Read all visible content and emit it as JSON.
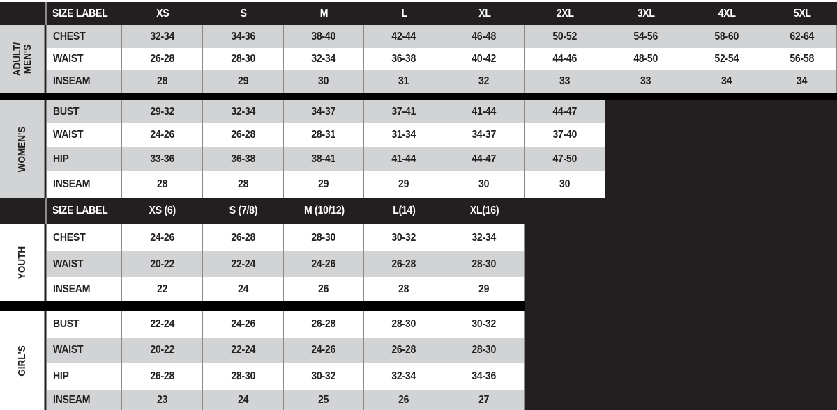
{
  "colors": {
    "dark": "#231f20",
    "bar": "#000000",
    "gray_row": "#d1d3d4",
    "white_row": "#ffffff"
  },
  "adult_header": {
    "label": "SIZE LABEL",
    "sizes": [
      "XS",
      "S",
      "M",
      "L",
      "XL",
      "2XL",
      "3XL",
      "4XL",
      "5XL"
    ]
  },
  "sections": [
    {
      "group": [
        "ADULT/",
        "MEN'S"
      ],
      "rows": [
        {
          "label": "CHEST",
          "values": [
            "32-34",
            "34-36",
            "38-40",
            "42-44",
            "46-48",
            "50-52",
            "54-56",
            "58-60",
            "62-64"
          ]
        },
        {
          "label": "WAIST",
          "values": [
            "26-28",
            "28-30",
            "32-34",
            "36-38",
            "40-42",
            "44-46",
            "48-50",
            "52-54",
            "56-58"
          ]
        },
        {
          "label": "INSEAM",
          "values": [
            "28",
            "29",
            "30",
            "31",
            "32",
            "33",
            "33",
            "34",
            "34"
          ]
        }
      ]
    },
    {
      "group": [
        "WOMEN'S"
      ],
      "rows": [
        {
          "label": "BUST",
          "values": [
            "29-32",
            "32-34",
            "34-37",
            "37-41",
            "41-44",
            "44-47"
          ]
        },
        {
          "label": "WAIST",
          "values": [
            "24-26",
            "26-28",
            "28-31",
            "31-34",
            "34-37",
            "37-40"
          ]
        },
        {
          "label": "HIP",
          "values": [
            "33-36",
            "36-38",
            "38-41",
            "41-44",
            "44-47",
            "47-50"
          ]
        },
        {
          "label": "INSEAM",
          "values": [
            "28",
            "28",
            "29",
            "29",
            "30",
            "30"
          ]
        }
      ]
    },
    {
      "group": [
        "YOUTH"
      ],
      "rows": [
        {
          "label": "CHEST",
          "values": [
            "24-26",
            "26-28",
            "28-30",
            "30-32",
            "32-34"
          ]
        },
        {
          "label": "WAIST",
          "values": [
            "20-22",
            "22-24",
            "24-26",
            "26-28",
            "28-30"
          ]
        },
        {
          "label": "INSEAM",
          "values": [
            "22",
            "24",
            "26",
            "28",
            "29"
          ]
        }
      ]
    },
    {
      "group": [
        "GIRL'S"
      ],
      "rows": [
        {
          "label": "BUST",
          "values": [
            "22-24",
            "24-26",
            "26-28",
            "28-30",
            "30-32"
          ]
        },
        {
          "label": "WAIST",
          "values": [
            "20-22",
            "22-24",
            "24-26",
            "26-28",
            "28-30"
          ]
        },
        {
          "label": "HIP",
          "values": [
            "26-28",
            "28-30",
            "30-32",
            "32-34",
            "34-36"
          ]
        },
        {
          "label": "INSEAM",
          "values": [
            "23",
            "24",
            "25",
            "26",
            "27"
          ]
        }
      ]
    }
  ],
  "youth_header": {
    "label": "SIZE LABEL",
    "sizes": [
      "XS (6)",
      "S (7/8)",
      "M (10/12)",
      "L(14)",
      "XL(16)"
    ]
  }
}
